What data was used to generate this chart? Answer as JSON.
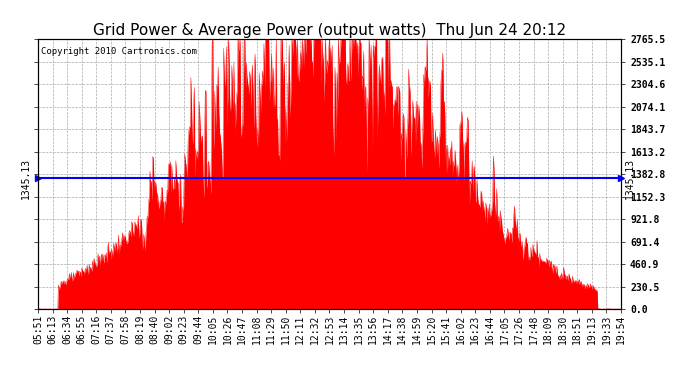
{
  "title": "Grid Power & Average Power (output watts)  Thu Jun 24 20:12",
  "copyright": "Copyright 2010 Cartronics.com",
  "average_line_value": 1345.13,
  "y_max": 2765.5,
  "y_min": 0.0,
  "ytick_labels": [
    "2765.5",
    "2535.1",
    "2304.6",
    "2074.1",
    "1843.7",
    "1613.2",
    "1382.8",
    "1152.3",
    "921.8",
    "691.4",
    "460.9",
    "230.5",
    "0.0"
  ],
  "ytick_values": [
    2765.5,
    2535.1,
    2304.6,
    2074.1,
    1843.7,
    1613.2,
    1382.8,
    1152.3,
    921.8,
    691.4,
    460.9,
    230.5,
    0.0
  ],
  "xtick_labels": [
    "05:51",
    "06:13",
    "06:34",
    "06:55",
    "07:16",
    "07:37",
    "07:58",
    "08:19",
    "08:40",
    "09:02",
    "09:23",
    "09:44",
    "10:05",
    "10:26",
    "10:47",
    "11:08",
    "11:29",
    "11:50",
    "12:11",
    "12:32",
    "12:53",
    "13:14",
    "13:35",
    "13:56",
    "14:17",
    "14:38",
    "14:59",
    "15:20",
    "15:41",
    "16:02",
    "16:23",
    "16:44",
    "17:05",
    "17:26",
    "17:48",
    "18:09",
    "18:30",
    "18:51",
    "19:13",
    "19:33",
    "19:54"
  ],
  "fill_color": "#FF0000",
  "line_color": "#FF0000",
  "avg_line_color": "#0000FF",
  "background_color": "#FFFFFF",
  "grid_color": "#888888",
  "title_fontsize": 11,
  "tick_fontsize": 7,
  "avg_label_fontsize": 7,
  "copyright_fontsize": 6.5
}
